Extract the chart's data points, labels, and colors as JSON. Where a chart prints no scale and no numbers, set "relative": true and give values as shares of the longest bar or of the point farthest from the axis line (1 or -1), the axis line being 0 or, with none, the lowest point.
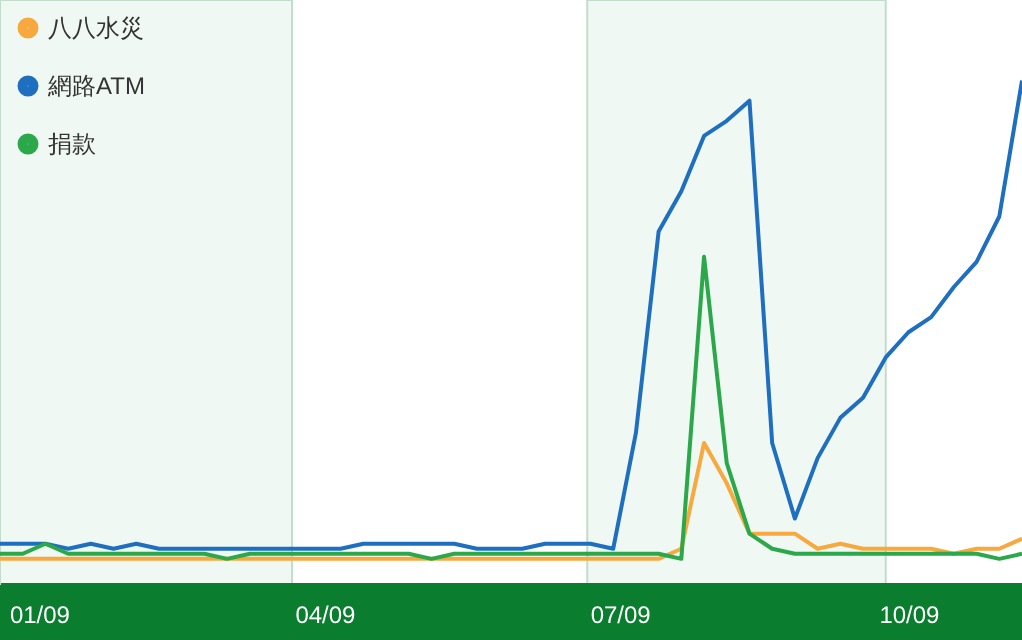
{
  "chart_data": {
    "type": "line",
    "relative": true,
    "x": [
      "2009-01-01",
      "2009-01-08",
      "2009-01-15",
      "2009-01-22",
      "2009-01-29",
      "2009-02-05",
      "2009-02-12",
      "2009-02-19",
      "2009-02-26",
      "2009-03-05",
      "2009-03-12",
      "2009-03-19",
      "2009-03-26",
      "2009-04-02",
      "2009-04-09",
      "2009-04-16",
      "2009-04-23",
      "2009-04-30",
      "2009-05-07",
      "2009-05-14",
      "2009-05-21",
      "2009-05-28",
      "2009-06-04",
      "2009-06-11",
      "2009-06-18",
      "2009-06-25",
      "2009-07-02",
      "2009-07-09",
      "2009-07-16",
      "2009-07-23",
      "2009-07-30",
      "2009-08-06",
      "2009-08-13",
      "2009-08-20",
      "2009-08-27",
      "2009-09-03",
      "2009-09-10",
      "2009-09-17",
      "2009-09-24",
      "2009-10-01",
      "2009-10-08",
      "2009-10-15",
      "2009-10-22",
      "2009-10-29",
      "2009-11-05",
      "2009-11-12"
    ],
    "xlim": [
      "2009-01-01",
      "2009-11-12"
    ],
    "xticks": [
      {
        "value": "2009-01-13",
        "label": "01/09"
      },
      {
        "value": "2009-04-11",
        "label": "04/09"
      },
      {
        "value": "2009-07-11",
        "label": "07/09"
      },
      {
        "value": "2009-10-08",
        "label": "10/09"
      }
    ],
    "series": [
      {
        "name": "八八水災",
        "color": "#f7a940",
        "values": [
          0.05,
          0.05,
          0.05,
          0.05,
          0.05,
          0.05,
          0.05,
          0.05,
          0.05,
          0.05,
          0.05,
          0.05,
          0.05,
          0.05,
          0.05,
          0.05,
          0.05,
          0.05,
          0.05,
          0.05,
          0.05,
          0.05,
          0.05,
          0.05,
          0.05,
          0.05,
          0.05,
          0.05,
          0.05,
          0.05,
          0.07,
          0.28,
          0.2,
          0.1,
          0.1,
          0.1,
          0.07,
          0.08,
          0.07,
          0.07,
          0.07,
          0.07,
          0.06,
          0.07,
          0.07,
          0.09
        ]
      },
      {
        "name": "網路ATM",
        "color": "#1f6fc0",
        "values": [
          0.08,
          0.08,
          0.08,
          0.07,
          0.08,
          0.07,
          0.08,
          0.07,
          0.07,
          0.07,
          0.07,
          0.07,
          0.07,
          0.07,
          0.07,
          0.07,
          0.08,
          0.08,
          0.08,
          0.08,
          0.08,
          0.07,
          0.07,
          0.07,
          0.08,
          0.08,
          0.08,
          0.07,
          0.3,
          0.7,
          0.78,
          0.89,
          0.92,
          0.96,
          0.28,
          0.13,
          0.25,
          0.33,
          0.37,
          0.45,
          0.5,
          0.53,
          0.59,
          0.64,
          0.73,
          1
        ]
      },
      {
        "name": "捐款",
        "color": "#2ba84a",
        "values": [
          0.06,
          0.06,
          0.08,
          0.06,
          0.06,
          0.06,
          0.06,
          0.06,
          0.06,
          0.06,
          0.05,
          0.06,
          0.06,
          0.06,
          0.06,
          0.06,
          0.06,
          0.06,
          0.06,
          0.05,
          0.06,
          0.06,
          0.06,
          0.06,
          0.06,
          0.06,
          0.06,
          0.06,
          0.06,
          0.06,
          0.05,
          0.65,
          0.24,
          0.1,
          0.07,
          0.06,
          0.06,
          0.06,
          0.06,
          0.06,
          0.06,
          0.06,
          0.06,
          0.06,
          0.05,
          0.06
        ]
      }
    ],
    "bands": [
      {
        "axis": "x",
        "from": "2009-01-01",
        "to": "2009-04-01",
        "color": "#eff8f2"
      },
      {
        "axis": "x",
        "from": "2009-07-01",
        "to": "2009-10-01",
        "color": "#eff8f2"
      }
    ],
    "legend": "top left",
    "line_style": "solid"
  }
}
